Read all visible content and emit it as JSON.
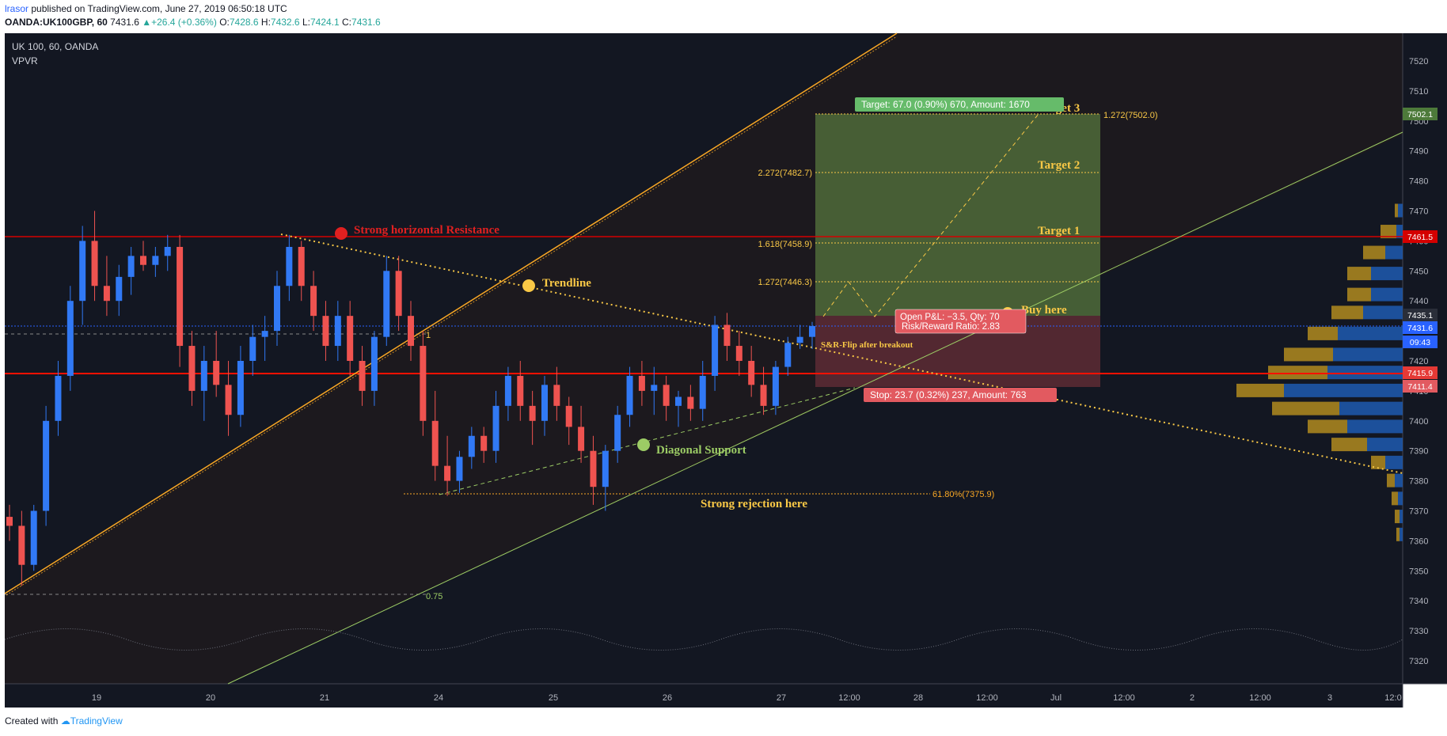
{
  "header": {
    "user": "lrasor",
    "published": "published on TradingView.com, June 27, 2019 06:50:18 UTC",
    "symbol": "OANDA:UK100GBP, 60",
    "last": "7431.6",
    "change": "+26.4 (+0.36%)",
    "o_label": "O:",
    "o_val": "7428.6",
    "h_label": "H:",
    "h_val": "7432.6",
    "l_label": "L:",
    "l_val": "7424.1",
    "c_label": "C:",
    "c_val": "7431.6"
  },
  "legend": {
    "title": "UK 100, 60, OANDA",
    "indicator": "VPVR"
  },
  "footer": {
    "created_with": "Created with",
    "brand": "TradingView"
  },
  "colors": {
    "background": "#131722",
    "bull": "#3179f5",
    "bear": "#ef5350",
    "resistance": "#ff1100",
    "fib": "#f9c846",
    "channel": "#f9a825",
    "support": "#9ccc65"
  },
  "chart_data": {
    "type": "candlestick",
    "title": "UK 100, 60, OANDA",
    "ylim": [
      7310,
      7530
    ],
    "y_ticks": [
      7320,
      7330,
      7340,
      7350,
      7360,
      7370,
      7380,
      7390,
      7400,
      7410,
      7420,
      7430,
      7440,
      7450,
      7460,
      7470,
      7480,
      7490,
      7500,
      7510,
      7520
    ],
    "x_ticks": [
      "19",
      "20",
      "21",
      "24",
      "25",
      "26",
      "27",
      "12:00",
      "28",
      "12:00",
      "Jul",
      "12:00",
      "2",
      "12:00",
      "3",
      "12:0"
    ],
    "price_badges": [
      "7502.1",
      "7461.5",
      "7435.1",
      "7431.6",
      "09:43",
      "7415.9",
      "7411.4"
    ],
    "candles_ohlc_approx": [
      [
        7368,
        7372,
        7360,
        7365
      ],
      [
        7365,
        7370,
        7345,
        7352
      ],
      [
        7352,
        7372,
        7350,
        7370
      ],
      [
        7370,
        7405,
        7365,
        7400
      ],
      [
        7400,
        7420,
        7395,
        7415
      ],
      [
        7415,
        7445,
        7410,
        7440
      ],
      [
        7440,
        7465,
        7432,
        7460
      ],
      [
        7460,
        7470,
        7440,
        7445
      ],
      [
        7445,
        7455,
        7435,
        7440
      ],
      [
        7440,
        7452,
        7435,
        7448
      ],
      [
        7448,
        7458,
        7442,
        7455
      ],
      [
        7455,
        7460,
        7450,
        7452
      ],
      [
        7452,
        7458,
        7448,
        7455
      ],
      [
        7455,
        7462,
        7450,
        7458
      ],
      [
        7458,
        7462,
        7418,
        7425
      ],
      [
        7425,
        7430,
        7405,
        7410
      ],
      [
        7410,
        7425,
        7400,
        7420
      ],
      [
        7420,
        7430,
        7408,
        7412
      ],
      [
        7412,
        7420,
        7395,
        7402
      ],
      [
        7402,
        7425,
        7398,
        7420
      ],
      [
        7420,
        7432,
        7415,
        7428
      ],
      [
        7428,
        7435,
        7420,
        7430
      ],
      [
        7430,
        7450,
        7425,
        7445
      ],
      [
        7445,
        7462,
        7440,
        7458
      ],
      [
        7458,
        7460,
        7440,
        7445
      ],
      [
        7445,
        7450,
        7430,
        7435
      ],
      [
        7435,
        7440,
        7420,
        7425
      ],
      [
        7425,
        7440,
        7420,
        7435
      ],
      [
        7435,
        7440,
        7415,
        7420
      ],
      [
        7420,
        7425,
        7405,
        7410
      ],
      [
        7410,
        7430,
        7405,
        7428
      ],
      [
        7428,
        7455,
        7425,
        7450
      ],
      [
        7450,
        7455,
        7430,
        7435
      ],
      [
        7435,
        7440,
        7420,
        7425
      ],
      [
        7425,
        7430,
        7395,
        7400
      ],
      [
        7400,
        7410,
        7380,
        7385
      ],
      [
        7385,
        7395,
        7375,
        7380
      ],
      [
        7380,
        7390,
        7376,
        7388
      ],
      [
        7388,
        7398,
        7384,
        7395
      ],
      [
        7395,
        7398,
        7386,
        7390
      ],
      [
        7390,
        7410,
        7386,
        7405
      ],
      [
        7405,
        7418,
        7400,
        7415
      ],
      [
        7415,
        7420,
        7400,
        7405
      ],
      [
        7405,
        7410,
        7392,
        7400
      ],
      [
        7400,
        7415,
        7395,
        7412
      ],
      [
        7412,
        7418,
        7400,
        7405
      ],
      [
        7405,
        7408,
        7392,
        7398
      ],
      [
        7398,
        7405,
        7386,
        7390
      ],
      [
        7390,
        7395,
        7372,
        7378
      ],
      [
        7378,
        7392,
        7370,
        7390
      ],
      [
        7390,
        7405,
        7386,
        7402
      ],
      [
        7402,
        7418,
        7398,
        7415
      ],
      [
        7415,
        7420,
        7405,
        7410
      ],
      [
        7410,
        7418,
        7402,
        7412
      ],
      [
        7412,
        7415,
        7400,
        7405
      ],
      [
        7405,
        7410,
        7398,
        7408
      ],
      [
        7408,
        7412,
        7400,
        7404
      ],
      [
        7404,
        7420,
        7400,
        7415
      ],
      [
        7415,
        7435,
        7410,
        7432
      ],
      [
        7432,
        7436,
        7420,
        7425
      ],
      [
        7425,
        7430,
        7415,
        7420
      ],
      [
        7420,
        7425,
        7408,
        7412
      ],
      [
        7412,
        7418,
        7402,
        7405
      ],
      [
        7405,
        7420,
        7402,
        7418
      ],
      [
        7418,
        7428,
        7415,
        7426
      ],
      [
        7426,
        7432,
        7424,
        7428
      ],
      [
        7428,
        7433,
        7424,
        7431.6
      ]
    ]
  },
  "annotations": {
    "resistance_label": "Strong horizontal Resistance",
    "trendline_label": "Trendline",
    "diagonal_support_label": "Diagonal Support",
    "rejection_label": "Strong rejection here",
    "srflip_label": "S&R-Flip after breakout",
    "buy_label": "Buy here",
    "target1": "Target 1",
    "target2": "Target 2",
    "target3": "Target 3",
    "fib_1272_a": "1.272(7446.3)",
    "fib_1618": "1.618(7458.9)",
    "fib_2272": "2.272(7482.7)",
    "fib_1272_b": "1.272(7502.0)",
    "fib_618": "61.80%(7375.9)",
    "fib_one": "1",
    "fib_075": "0.75",
    "target_box": "Target: 67.0 (0.90%) 670, Amount: 1670",
    "stop_box": "Stop: 23.7 (0.32%) 237, Amount: 763",
    "pnl_line1": "Open P&L: −3.5, Qty: 70",
    "pnl_line2": "Risk/Reward Ratio: 2.83"
  }
}
